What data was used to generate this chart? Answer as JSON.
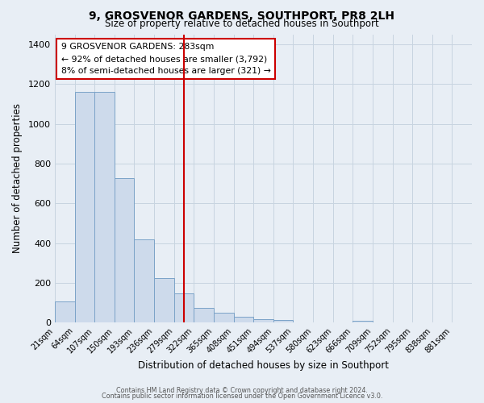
{
  "title": "9, GROSVENOR GARDENS, SOUTHPORT, PR8 2LH",
  "subtitle": "Size of property relative to detached houses in Southport",
  "xlabel": "Distribution of detached houses by size in Southport",
  "ylabel": "Number of detached properties",
  "footer_line1": "Contains HM Land Registry data © Crown copyright and database right 2024.",
  "footer_line2": "Contains public sector information licensed under the Open Government Licence v3.0.",
  "bin_labels": [
    "21sqm",
    "64sqm",
    "107sqm",
    "150sqm",
    "193sqm",
    "236sqm",
    "279sqm",
    "322sqm",
    "365sqm",
    "408sqm",
    "451sqm",
    "494sqm",
    "537sqm",
    "580sqm",
    "623sqm",
    "666sqm",
    "709sqm",
    "752sqm",
    "795sqm",
    "838sqm",
    "881sqm"
  ],
  "bar_heights": [
    107,
    1160,
    1160,
    728,
    420,
    222,
    148,
    72,
    48,
    30,
    18,
    12,
    0,
    0,
    0,
    8,
    0,
    0,
    0,
    0,
    0
  ],
  "bar_color": "#cddaeb",
  "bar_edge_color": "#7ba3c8",
  "vline_x": 6.5,
  "vline_color": "#cc0000",
  "annotation_title": "9 GROSVENOR GARDENS: 283sqm",
  "annotation_line1": "← 92% of detached houses are smaller (3,792)",
  "annotation_line2": "8% of semi-detached houses are larger (321) →",
  "annotation_box_facecolor": "#ffffff",
  "annotation_box_edgecolor": "#cc0000",
  "ylim": [
    0,
    1450
  ],
  "yticks": [
    0,
    200,
    400,
    600,
    800,
    1000,
    1200,
    1400
  ],
  "bg_color": "#e8eef5",
  "grid_color": "#c8d4e0",
  "title_fontsize": 10,
  "subtitle_fontsize": 8.5
}
